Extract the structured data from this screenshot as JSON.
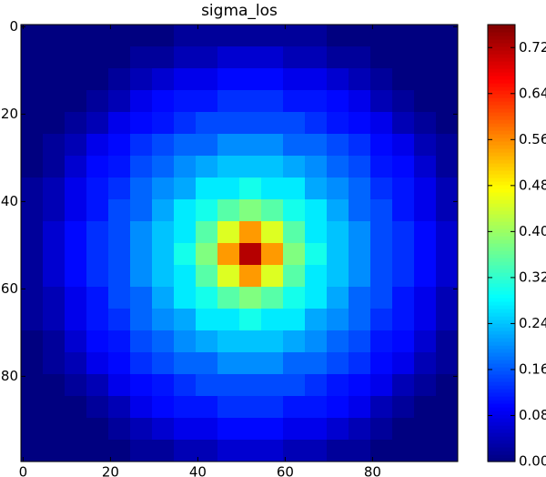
{
  "chart_data": {
    "type": "heatmap",
    "title": "sigma_los",
    "colormap": "jet",
    "xlim": [
      -0.5,
      99.5
    ],
    "ylim": [
      99.5,
      -0.5
    ],
    "xticks": [
      0,
      20,
      40,
      60,
      80
    ],
    "yticks": [
      0,
      20,
      40,
      60,
      80
    ],
    "clim": [
      0,
      0.76
    ],
    "cticks": [
      {
        "value": 0,
        "label": "0.00"
      },
      {
        "value": 0.08,
        "label": "0.08"
      },
      {
        "value": 0.16,
        "label": "0.16"
      },
      {
        "value": 0.24,
        "label": "0.24"
      },
      {
        "value": 0.32,
        "label": "0.32"
      },
      {
        "value": 0.4,
        "label": "0.40"
      },
      {
        "value": 0.48,
        "label": "0.48"
      },
      {
        "value": 0.56,
        "label": "0.56"
      },
      {
        "value": 0.64,
        "label": "0.64"
      },
      {
        "value": 0.72,
        "label": "0.72"
      }
    ],
    "values": [
      [
        0,
        0,
        0,
        0,
        0,
        0,
        0,
        0.02,
        0.02,
        0.02,
        0.02,
        0.02,
        0.02,
        0.02,
        0,
        0,
        0,
        0,
        0,
        0
      ],
      [
        0,
        0,
        0,
        0,
        0,
        0.02,
        0.02,
        0.04,
        0.04,
        0.06,
        0.06,
        0.06,
        0.04,
        0.04,
        0.02,
        0.02,
        0,
        0,
        0,
        0
      ],
      [
        0,
        0,
        0,
        0,
        0.02,
        0.04,
        0.06,
        0.08,
        0.08,
        0.1,
        0.1,
        0.1,
        0.08,
        0.08,
        0.06,
        0.04,
        0.02,
        0,
        0,
        0
      ],
      [
        0,
        0,
        0,
        0.02,
        0.04,
        0.08,
        0.1,
        0.11,
        0.11,
        0.13,
        0.13,
        0.13,
        0.11,
        0.11,
        0.1,
        0.08,
        0.04,
        0.02,
        0,
        0
      ],
      [
        0,
        0,
        0.02,
        0.04,
        0.08,
        0.1,
        0.11,
        0.13,
        0.15,
        0.15,
        0.15,
        0.15,
        0.15,
        0.13,
        0.11,
        0.1,
        0.08,
        0.04,
        0.02,
        0
      ],
      [
        0,
        0.02,
        0.04,
        0.08,
        0.1,
        0.13,
        0.15,
        0.17,
        0.17,
        0.2,
        0.2,
        0.2,
        0.17,
        0.17,
        0.15,
        0.13,
        0.1,
        0.08,
        0.04,
        0.02
      ],
      [
        0,
        0.02,
        0.06,
        0.1,
        0.11,
        0.15,
        0.17,
        0.2,
        0.22,
        0.24,
        0.24,
        0.24,
        0.22,
        0.2,
        0.17,
        0.15,
        0.11,
        0.1,
        0.06,
        0.02
      ],
      [
        0.02,
        0.04,
        0.08,
        0.11,
        0.13,
        0.17,
        0.2,
        0.22,
        0.27,
        0.27,
        0.3,
        0.27,
        0.27,
        0.22,
        0.2,
        0.17,
        0.13,
        0.11,
        0.08,
        0.04
      ],
      [
        0.02,
        0.04,
        0.08,
        0.11,
        0.15,
        0.17,
        0.22,
        0.27,
        0.3,
        0.35,
        0.38,
        0.35,
        0.3,
        0.27,
        0.22,
        0.17,
        0.15,
        0.11,
        0.08,
        0.04
      ],
      [
        0.02,
        0.06,
        0.1,
        0.13,
        0.15,
        0.2,
        0.24,
        0.27,
        0.35,
        0.45,
        0.55,
        0.45,
        0.35,
        0.27,
        0.24,
        0.2,
        0.15,
        0.13,
        0.1,
        0.06
      ],
      [
        0.02,
        0.06,
        0.1,
        0.13,
        0.15,
        0.2,
        0.24,
        0.3,
        0.38,
        0.55,
        0.72,
        0.55,
        0.38,
        0.3,
        0.24,
        0.2,
        0.15,
        0.13,
        0.1,
        0.06
      ],
      [
        0.02,
        0.06,
        0.1,
        0.13,
        0.15,
        0.2,
        0.24,
        0.27,
        0.35,
        0.45,
        0.55,
        0.45,
        0.35,
        0.27,
        0.24,
        0.2,
        0.15,
        0.13,
        0.1,
        0.06
      ],
      [
        0.02,
        0.04,
        0.08,
        0.11,
        0.15,
        0.17,
        0.22,
        0.27,
        0.3,
        0.35,
        0.38,
        0.35,
        0.3,
        0.27,
        0.22,
        0.17,
        0.15,
        0.11,
        0.08,
        0.04
      ],
      [
        0.02,
        0.04,
        0.08,
        0.11,
        0.13,
        0.17,
        0.2,
        0.22,
        0.27,
        0.27,
        0.3,
        0.27,
        0.27,
        0.22,
        0.2,
        0.17,
        0.13,
        0.11,
        0.08,
        0.04
      ],
      [
        0,
        0.02,
        0.06,
        0.1,
        0.11,
        0.15,
        0.17,
        0.2,
        0.22,
        0.24,
        0.24,
        0.24,
        0.22,
        0.2,
        0.17,
        0.15,
        0.11,
        0.1,
        0.06,
        0.02
      ],
      [
        0,
        0.02,
        0.04,
        0.08,
        0.1,
        0.13,
        0.15,
        0.17,
        0.17,
        0.2,
        0.2,
        0.2,
        0.17,
        0.17,
        0.15,
        0.13,
        0.1,
        0.08,
        0.04,
        0.02
      ],
      [
        0,
        0,
        0.02,
        0.04,
        0.08,
        0.1,
        0.11,
        0.13,
        0.15,
        0.15,
        0.15,
        0.15,
        0.15,
        0.13,
        0.11,
        0.1,
        0.08,
        0.04,
        0.02,
        0
      ],
      [
        0,
        0,
        0,
        0.02,
        0.04,
        0.08,
        0.1,
        0.11,
        0.11,
        0.13,
        0.13,
        0.13,
        0.11,
        0.11,
        0.1,
        0.08,
        0.04,
        0.02,
        0,
        0
      ],
      [
        0,
        0,
        0,
        0,
        0.02,
        0.04,
        0.06,
        0.08,
        0.08,
        0.1,
        0.1,
        0.1,
        0.08,
        0.08,
        0.06,
        0.04,
        0.02,
        0,
        0,
        0
      ],
      [
        0,
        0,
        0,
        0,
        0,
        0.02,
        0.02,
        0.04,
        0.04,
        0.06,
        0.06,
        0.06,
        0.04,
        0.04,
        0.02,
        0.02,
        0,
        0,
        0,
        0
      ]
    ]
  }
}
